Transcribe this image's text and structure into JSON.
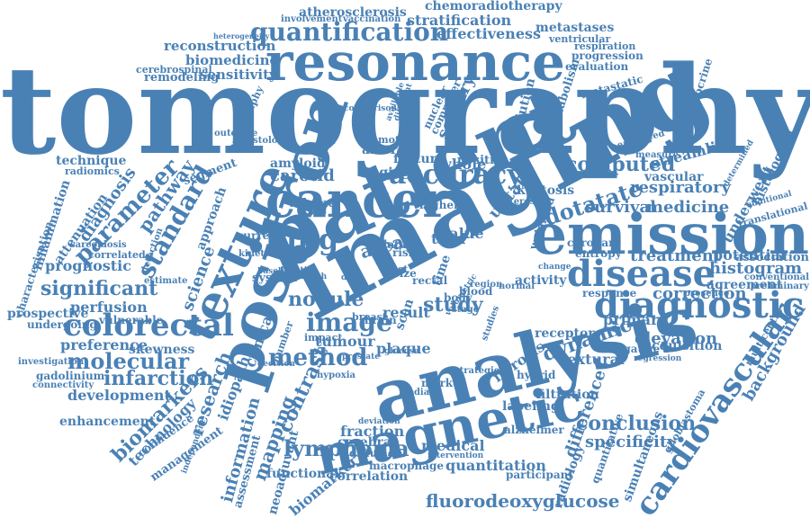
{
  "cloud": {
    "color": "#4a81b5",
    "background": "#ffffff",
    "words": [
      "tomography",
      "imaging",
      "patient",
      "analysis",
      "resonance",
      "positron",
      "emission",
      "magnetic",
      "cancer",
      "texture",
      "diagnostic",
      "disease",
      "colorectal",
      "cardiovascular",
      "quantification",
      "accuracy",
      "lung",
      "image",
      "method",
      "lymphoma",
      "standard",
      "parameter",
      "dotatate",
      "computed",
      "molecular",
      "fluorodeoxyglucose",
      "significant",
      "dynamic",
      "contrast",
      "nodule",
      "study",
      "survival",
      "respiratory",
      "medicine",
      "treatment",
      "correction",
      "histogram",
      "infarction",
      "conclusion",
      "specificity",
      "effectiveness",
      "chemoradiotherapy",
      "atherosclerosis",
      "stratification",
      "reconstruction",
      "biomedicine",
      "sensitivity",
      "remodeling",
      "prognostic",
      "perfusion",
      "attenuation",
      "diagnosis",
      "pathway",
      "skewness",
      "development",
      "biomarkers",
      "technology",
      "management",
      "information",
      "mapping",
      "research",
      "science",
      "carotid",
      "density",
      "staging",
      "whole",
      "amyloid",
      "tumour",
      "plaque",
      "result",
      "fraction",
      "medical",
      "quantitation",
      "elevation",
      "textural",
      "fibrosis",
      "primary",
      "difference",
      "radiology",
      "simultaneous",
      "quantitative",
      "background",
      "agreement",
      "potential",
      "association",
      "underwent",
      "streamline",
      "metastases",
      "progression",
      "evaluation",
      "metastatic",
      "ventricular",
      "respiration",
      "vaccination",
      "involvement",
      "heterogeneity",
      "cerebrospinal",
      "angiography",
      "outcome",
      "histology",
      "technique",
      "radiomics",
      "characterisation",
      "inflammation",
      "sarcoidosis",
      "correlated",
      "estimate",
      "prospective",
      "undergoing",
      "vulnerable",
      "preference",
      "investigation",
      "gadolinium",
      "connectivity",
      "enhancement",
      "confidence",
      "independent",
      "assessment",
      "idiopathic",
      "neoadjuvant",
      "biomarker",
      "functional",
      "correlation",
      "cerebral",
      "diffusion",
      "macrophage",
      "participant",
      "alzheimer",
      "median",
      "marker",
      "labeling",
      "filtration",
      "acquisition",
      "response",
      "presence",
      "regression",
      "negative",
      "hybrid",
      "receptor",
      "uptake",
      "kurtosis",
      "entropy",
      "coronary",
      "vascular",
      "enhanced",
      "measure",
      "metabolism",
      "neuroendocrine",
      "glioblastoma",
      "multicentre",
      "histological",
      "translational",
      "determined",
      "additional",
      "conventional",
      "preliminary",
      "feature",
      "positive",
      "resolution",
      "solitary",
      "nuclear",
      "computer",
      "arterial",
      "motion",
      "different",
      "available",
      "comparison",
      "detection",
      "approach",
      "segment",
      "current",
      "volume",
      "kinetic",
      "system",
      "clinical",
      "decision",
      "impact",
      "number",
      "hypoxia",
      "brain",
      "scan",
      "body",
      "stage",
      "blood",
      "time",
      "risk",
      "size",
      "rectal",
      "cost",
      "data",
      "area",
      "trial",
      "value",
      "higher",
      "interest",
      "weighted",
      "region",
      "activity",
      "normal",
      "change",
      "volumetric",
      "baseline",
      "function",
      "health",
      "breast",
      "prostate",
      "glucose",
      "deviation",
      "strategies",
      "intervention",
      "dual",
      "studies"
    ]
  }
}
